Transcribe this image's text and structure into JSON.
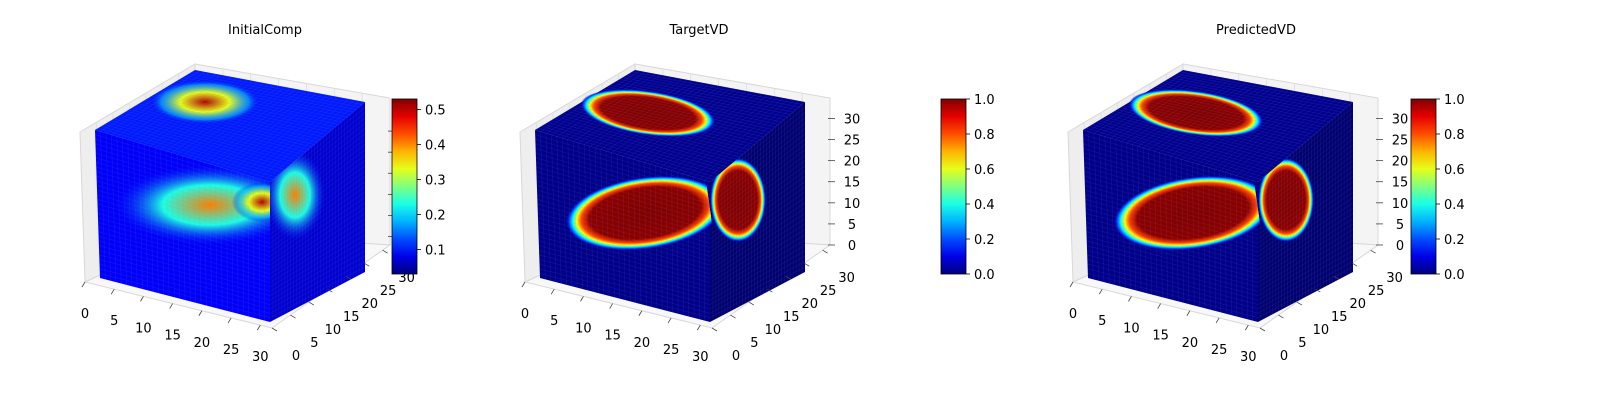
{
  "chart_data": [
    {
      "type": "heatmap",
      "subtype": "3d-voxel-cube",
      "title": "InitialComp",
      "axis_ticks": {
        "x": [
          0,
          5,
          10,
          15,
          20,
          25,
          30
        ],
        "y": [
          0,
          5,
          10,
          15,
          20,
          25,
          30
        ],
        "z": []
      },
      "colorbar": {
        "colormap": "jet",
        "min": 0.03,
        "max": 0.53,
        "ticks": [
          0.1,
          0.2,
          0.3,
          0.4,
          0.5
        ],
        "tick_labels": [
          "0.1",
          "0.2",
          "0.3",
          "0.4",
          "0.5"
        ]
      }
    },
    {
      "type": "heatmap",
      "subtype": "3d-voxel-cube",
      "title": "TargetVD",
      "axis_ticks": {
        "x": [
          0,
          5,
          10,
          15,
          20,
          25,
          30
        ],
        "y": [
          0,
          5,
          10,
          15,
          20,
          25,
          30
        ],
        "z": [
          0,
          5,
          10,
          15,
          20,
          25,
          30
        ]
      },
      "colorbar": {
        "colormap": "jet",
        "min": 0,
        "max": 1,
        "ticks": [
          0,
          0.2,
          0.4,
          0.6,
          0.8,
          1
        ],
        "tick_labels": [
          "0.0",
          "0.2",
          "0.4",
          "0.6",
          "0.8",
          "1.0"
        ]
      }
    },
    {
      "type": "heatmap",
      "subtype": "3d-voxel-cube",
      "title": "PredictedVD",
      "axis_ticks": {
        "x": [
          0,
          5,
          10,
          15,
          20,
          25,
          30
        ],
        "y": [
          0,
          5,
          10,
          15,
          20,
          25,
          30
        ],
        "z": [
          0,
          5,
          10,
          15,
          20,
          25,
          30
        ]
      },
      "colorbar": {
        "colormap": "jet",
        "min": 0,
        "max": 1,
        "ticks": [
          0,
          0.2,
          0.4,
          0.6,
          0.8,
          1
        ],
        "tick_labels": [
          "0.0",
          "0.2",
          "0.4",
          "0.6",
          "0.8",
          "1.0"
        ]
      }
    }
  ],
  "colors": {
    "background": "#ffffff",
    "pane": "#f2f2f2",
    "grid": "#cccccc",
    "voxel_low": "#00007f"
  }
}
